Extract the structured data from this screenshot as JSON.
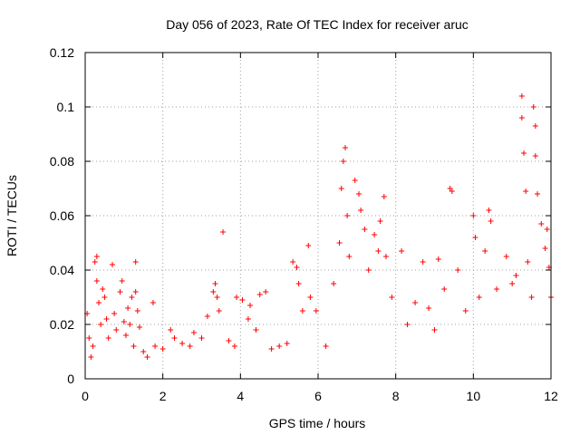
{
  "chart_data": {
    "type": "scatter",
    "title": "Day 056 of 2023, Rate Of TEC Index for receiver aruc",
    "xlabel": "GPS time / hours",
    "ylabel": "ROTI / TECUs",
    "xlim": [
      0,
      12
    ],
    "ylim": [
      0,
      0.12
    ],
    "x_ticks": [
      0,
      2,
      4,
      6,
      8,
      10,
      12
    ],
    "y_ticks": [
      0,
      0.02,
      0.04,
      0.06,
      0.08,
      0.1,
      0.12
    ],
    "x_tick_labels": [
      "0",
      "2",
      "4",
      "6",
      "8",
      "10",
      "12"
    ],
    "y_tick_labels": [
      "0",
      "0.02",
      "0.04",
      "0.06",
      "0.08",
      "0.1",
      "0.12"
    ],
    "grid": true,
    "marker": "+",
    "color": "#ff0000",
    "series": [
      {
        "points": [
          [
            0.05,
            0.024
          ],
          [
            0.1,
            0.015
          ],
          [
            0.15,
            0.008
          ],
          [
            0.2,
            0.012
          ],
          [
            0.25,
            0.043
          ],
          [
            0.3,
            0.045
          ],
          [
            0.3,
            0.036
          ],
          [
            0.35,
            0.028
          ],
          [
            0.4,
            0.02
          ],
          [
            0.45,
            0.033
          ],
          [
            0.5,
            0.03
          ],
          [
            0.55,
            0.022
          ],
          [
            0.6,
            0.015
          ],
          [
            0.7,
            0.042
          ],
          [
            0.75,
            0.024
          ],
          [
            0.8,
            0.018
          ],
          [
            0.9,
            0.032
          ],
          [
            0.95,
            0.036
          ],
          [
            1.0,
            0.021
          ],
          [
            1.05,
            0.016
          ],
          [
            1.1,
            0.026
          ],
          [
            1.15,
            0.02
          ],
          [
            1.2,
            0.03
          ],
          [
            1.25,
            0.012
          ],
          [
            1.3,
            0.043
          ],
          [
            1.3,
            0.032
          ],
          [
            1.35,
            0.025
          ],
          [
            1.4,
            0.019
          ],
          [
            1.5,
            0.01
          ],
          [
            1.6,
            0.008
          ],
          [
            1.75,
            0.028
          ],
          [
            1.8,
            0.012
          ],
          [
            2.0,
            0.011
          ],
          [
            2.2,
            0.018
          ],
          [
            2.3,
            0.015
          ],
          [
            2.5,
            0.013
          ],
          [
            2.7,
            0.012
          ],
          [
            2.8,
            0.017
          ],
          [
            3.0,
            0.015
          ],
          [
            3.15,
            0.023
          ],
          [
            3.3,
            0.032
          ],
          [
            3.35,
            0.035
          ],
          [
            3.4,
            0.03
          ],
          [
            3.45,
            0.025
          ],
          [
            3.55,
            0.054
          ],
          [
            3.7,
            0.014
          ],
          [
            3.85,
            0.012
          ],
          [
            3.9,
            0.03
          ],
          [
            4.05,
            0.029
          ],
          [
            4.2,
            0.022
          ],
          [
            4.25,
            0.027
          ],
          [
            4.4,
            0.018
          ],
          [
            4.5,
            0.031
          ],
          [
            4.65,
            0.032
          ],
          [
            4.8,
            0.011
          ],
          [
            5.0,
            0.012
          ],
          [
            5.2,
            0.013
          ],
          [
            5.35,
            0.043
          ],
          [
            5.45,
            0.041
          ],
          [
            5.5,
            0.035
          ],
          [
            5.6,
            0.025
          ],
          [
            5.75,
            0.049
          ],
          [
            5.8,
            0.03
          ],
          [
            5.95,
            0.025
          ],
          [
            6.2,
            0.012
          ],
          [
            6.4,
            0.035
          ],
          [
            6.55,
            0.05
          ],
          [
            6.6,
            0.07
          ],
          [
            6.65,
            0.08
          ],
          [
            6.7,
            0.085
          ],
          [
            6.75,
            0.06
          ],
          [
            6.8,
            0.045
          ],
          [
            6.95,
            0.073
          ],
          [
            7.05,
            0.068
          ],
          [
            7.1,
            0.062
          ],
          [
            7.2,
            0.055
          ],
          [
            7.3,
            0.04
          ],
          [
            7.45,
            0.053
          ],
          [
            7.55,
            0.047
          ],
          [
            7.6,
            0.058
          ],
          [
            7.7,
            0.067
          ],
          [
            7.75,
            0.045
          ],
          [
            7.9,
            0.03
          ],
          [
            8.15,
            0.047
          ],
          [
            8.3,
            0.02
          ],
          [
            8.5,
            0.028
          ],
          [
            8.7,
            0.043
          ],
          [
            8.85,
            0.026
          ],
          [
            9.0,
            0.018
          ],
          [
            9.1,
            0.044
          ],
          [
            9.25,
            0.033
          ],
          [
            9.4,
            0.07
          ],
          [
            9.45,
            0.069
          ],
          [
            9.6,
            0.04
          ],
          [
            9.8,
            0.025
          ],
          [
            10.0,
            0.06
          ],
          [
            10.05,
            0.052
          ],
          [
            10.15,
            0.03
          ],
          [
            10.3,
            0.047
          ],
          [
            10.4,
            0.062
          ],
          [
            10.45,
            0.058
          ],
          [
            10.6,
            0.033
          ],
          [
            10.85,
            0.045
          ],
          [
            11.0,
            0.035
          ],
          [
            11.1,
            0.038
          ],
          [
            11.25,
            0.104
          ],
          [
            11.25,
            0.096
          ],
          [
            11.3,
            0.083
          ],
          [
            11.35,
            0.069
          ],
          [
            11.4,
            0.043
          ],
          [
            11.5,
            0.03
          ],
          [
            11.55,
            0.1
          ],
          [
            11.6,
            0.093
          ],
          [
            11.6,
            0.082
          ],
          [
            11.65,
            0.068
          ],
          [
            11.75,
            0.057
          ],
          [
            11.85,
            0.048
          ],
          [
            11.9,
            0.055
          ],
          [
            11.95,
            0.041
          ],
          [
            12.0,
            0.03
          ]
        ]
      }
    ]
  }
}
